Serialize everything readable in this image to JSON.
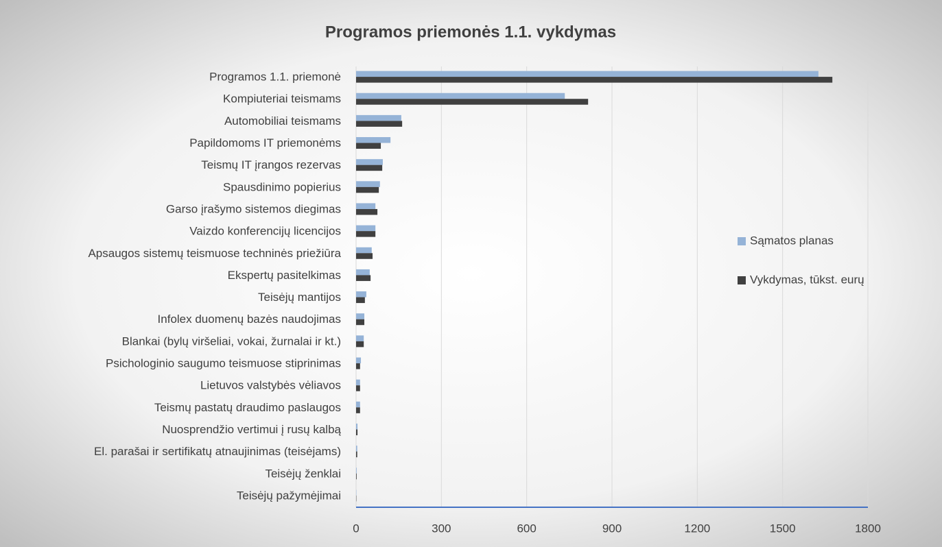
{
  "chart_data": {
    "type": "hbar",
    "title": "Programos priemonės 1.1. vykdymas",
    "categories": [
      "Programos 1.1. priemonė",
      "Kompiuteriai teismams",
      "Automobiliai teismams",
      "Papildomoms IT priemonėms",
      "Teismų IT įrangos rezervas",
      "Spausdinimo popierius",
      "Garso įrašymo sistemos diegimas",
      "Vaizdo konferencijų licencijos",
      "Apsaugos sistemų teismuose techninės priežiūra",
      "Ekspertų pasitelkimas",
      "Teisėjų mantijos",
      "Infolex duomenų bazės naudojimas",
      "Blankai (bylų viršeliai, vokai, žurnalai ir kt.)",
      "Psichologinio saugumo teismuose stiprinimas",
      "Lietuvos valstybės vėliavos",
      "Teismų pastatų draudimo paslaugos",
      "Nuosprendžio vertimui į rusų kalbą",
      "El. parašai ir sertifikatų atnaujinimas (teisėjams)",
      "Teisėjų ženklai",
      "Teisėjų pažymėjimai"
    ],
    "series": [
      {
        "name": "Sąmatos planas",
        "color": "#95b3d7",
        "values": [
          1626,
          734,
          159,
          121,
          94,
          84,
          68,
          68,
          55,
          48,
          36,
          29,
          27,
          17,
          14,
          14,
          5,
          4,
          2,
          1
        ]
      },
      {
        "name": "Vykdymas, tūkst. eurų",
        "color": "#404040",
        "values": [
          1675,
          816,
          162,
          87,
          92,
          80,
          75,
          68,
          58,
          51,
          31,
          29,
          27,
          14,
          14,
          14,
          5,
          4,
          2,
          1
        ]
      }
    ],
    "xlim": [
      0,
      1800
    ],
    "xticks": [
      0,
      300,
      600,
      900,
      1200,
      1500,
      1800
    ],
    "grid": true,
    "legend": "right"
  }
}
